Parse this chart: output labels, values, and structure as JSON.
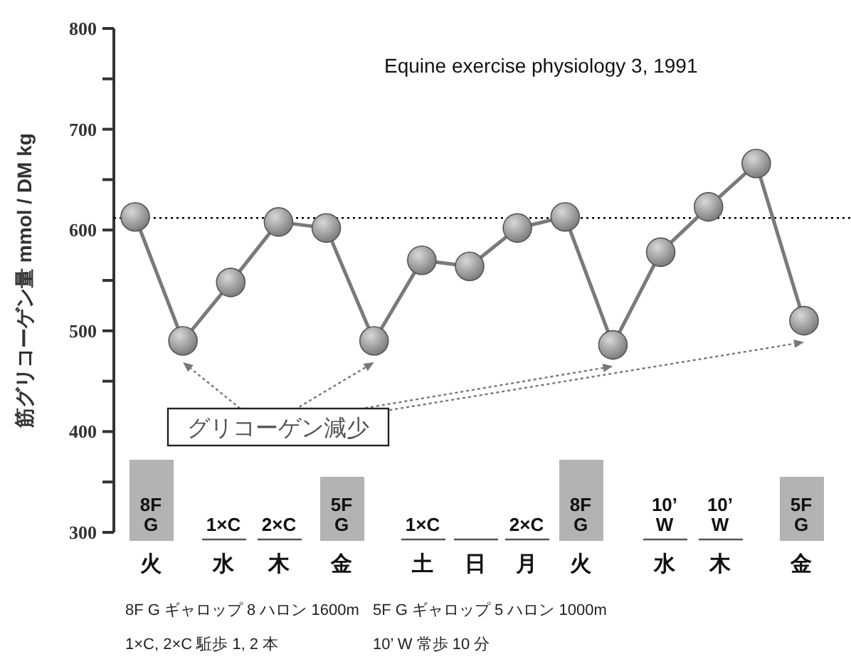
{
  "chart_data": {
    "type": "line",
    "ylabel": "筋グリコーゲン量 mmol / DM kg",
    "categories": [
      null,
      null,
      null,
      null,
      null,
      null,
      null,
      null,
      null,
      null,
      null,
      null,
      null,
      null,
      null
    ],
    "series": [
      {
        "color": "#7a7a7a",
        "values": [
          613,
          490,
          548,
          608,
          602,
          490,
          570,
          564,
          602,
          613,
          486,
          578,
          623,
          666,
          510
        ]
      }
    ],
    "marker": "circle",
    "line_style": "solid",
    "tick_labels": "y",
    "ylim": [
      300,
      800
    ],
    "yticks": [
      300,
      {
        "value": 350,
        "label": null
      },
      400,
      {
        "value": 450,
        "label": null
      },
      500,
      {
        "value": 550,
        "label": null
      },
      600,
      {
        "value": 650,
        "label": null
      },
      700,
      {
        "value": 750,
        "label": null
      },
      800
    ],
    "ref_lines": [
      {
        "axis": "y",
        "value": 612,
        "line_style": "dotted",
        "color": "#000000"
      }
    ],
    "annotations": [
      "Equine exercise physiology 3, 1991",
      "グリコーゲン減少",
      "8F\nG",
      "1×C",
      "2×C",
      "5F\nG",
      "1×C",
      "2×C",
      "8F\nG",
      "10’\nW",
      "10’\nW",
      "5F\nG",
      "火",
      "水",
      "木",
      "金",
      "土",
      "日",
      "月",
      "火",
      "水",
      "木",
      "金",
      "8F G ギャロップ 8 ハロン 1600m",
      "5F G ギャロップ 5 ハロン 1000m",
      "1×C, 2×C 駈歩 1, 2 本",
      "10’ W 常歩 10 分"
    ]
  }
}
